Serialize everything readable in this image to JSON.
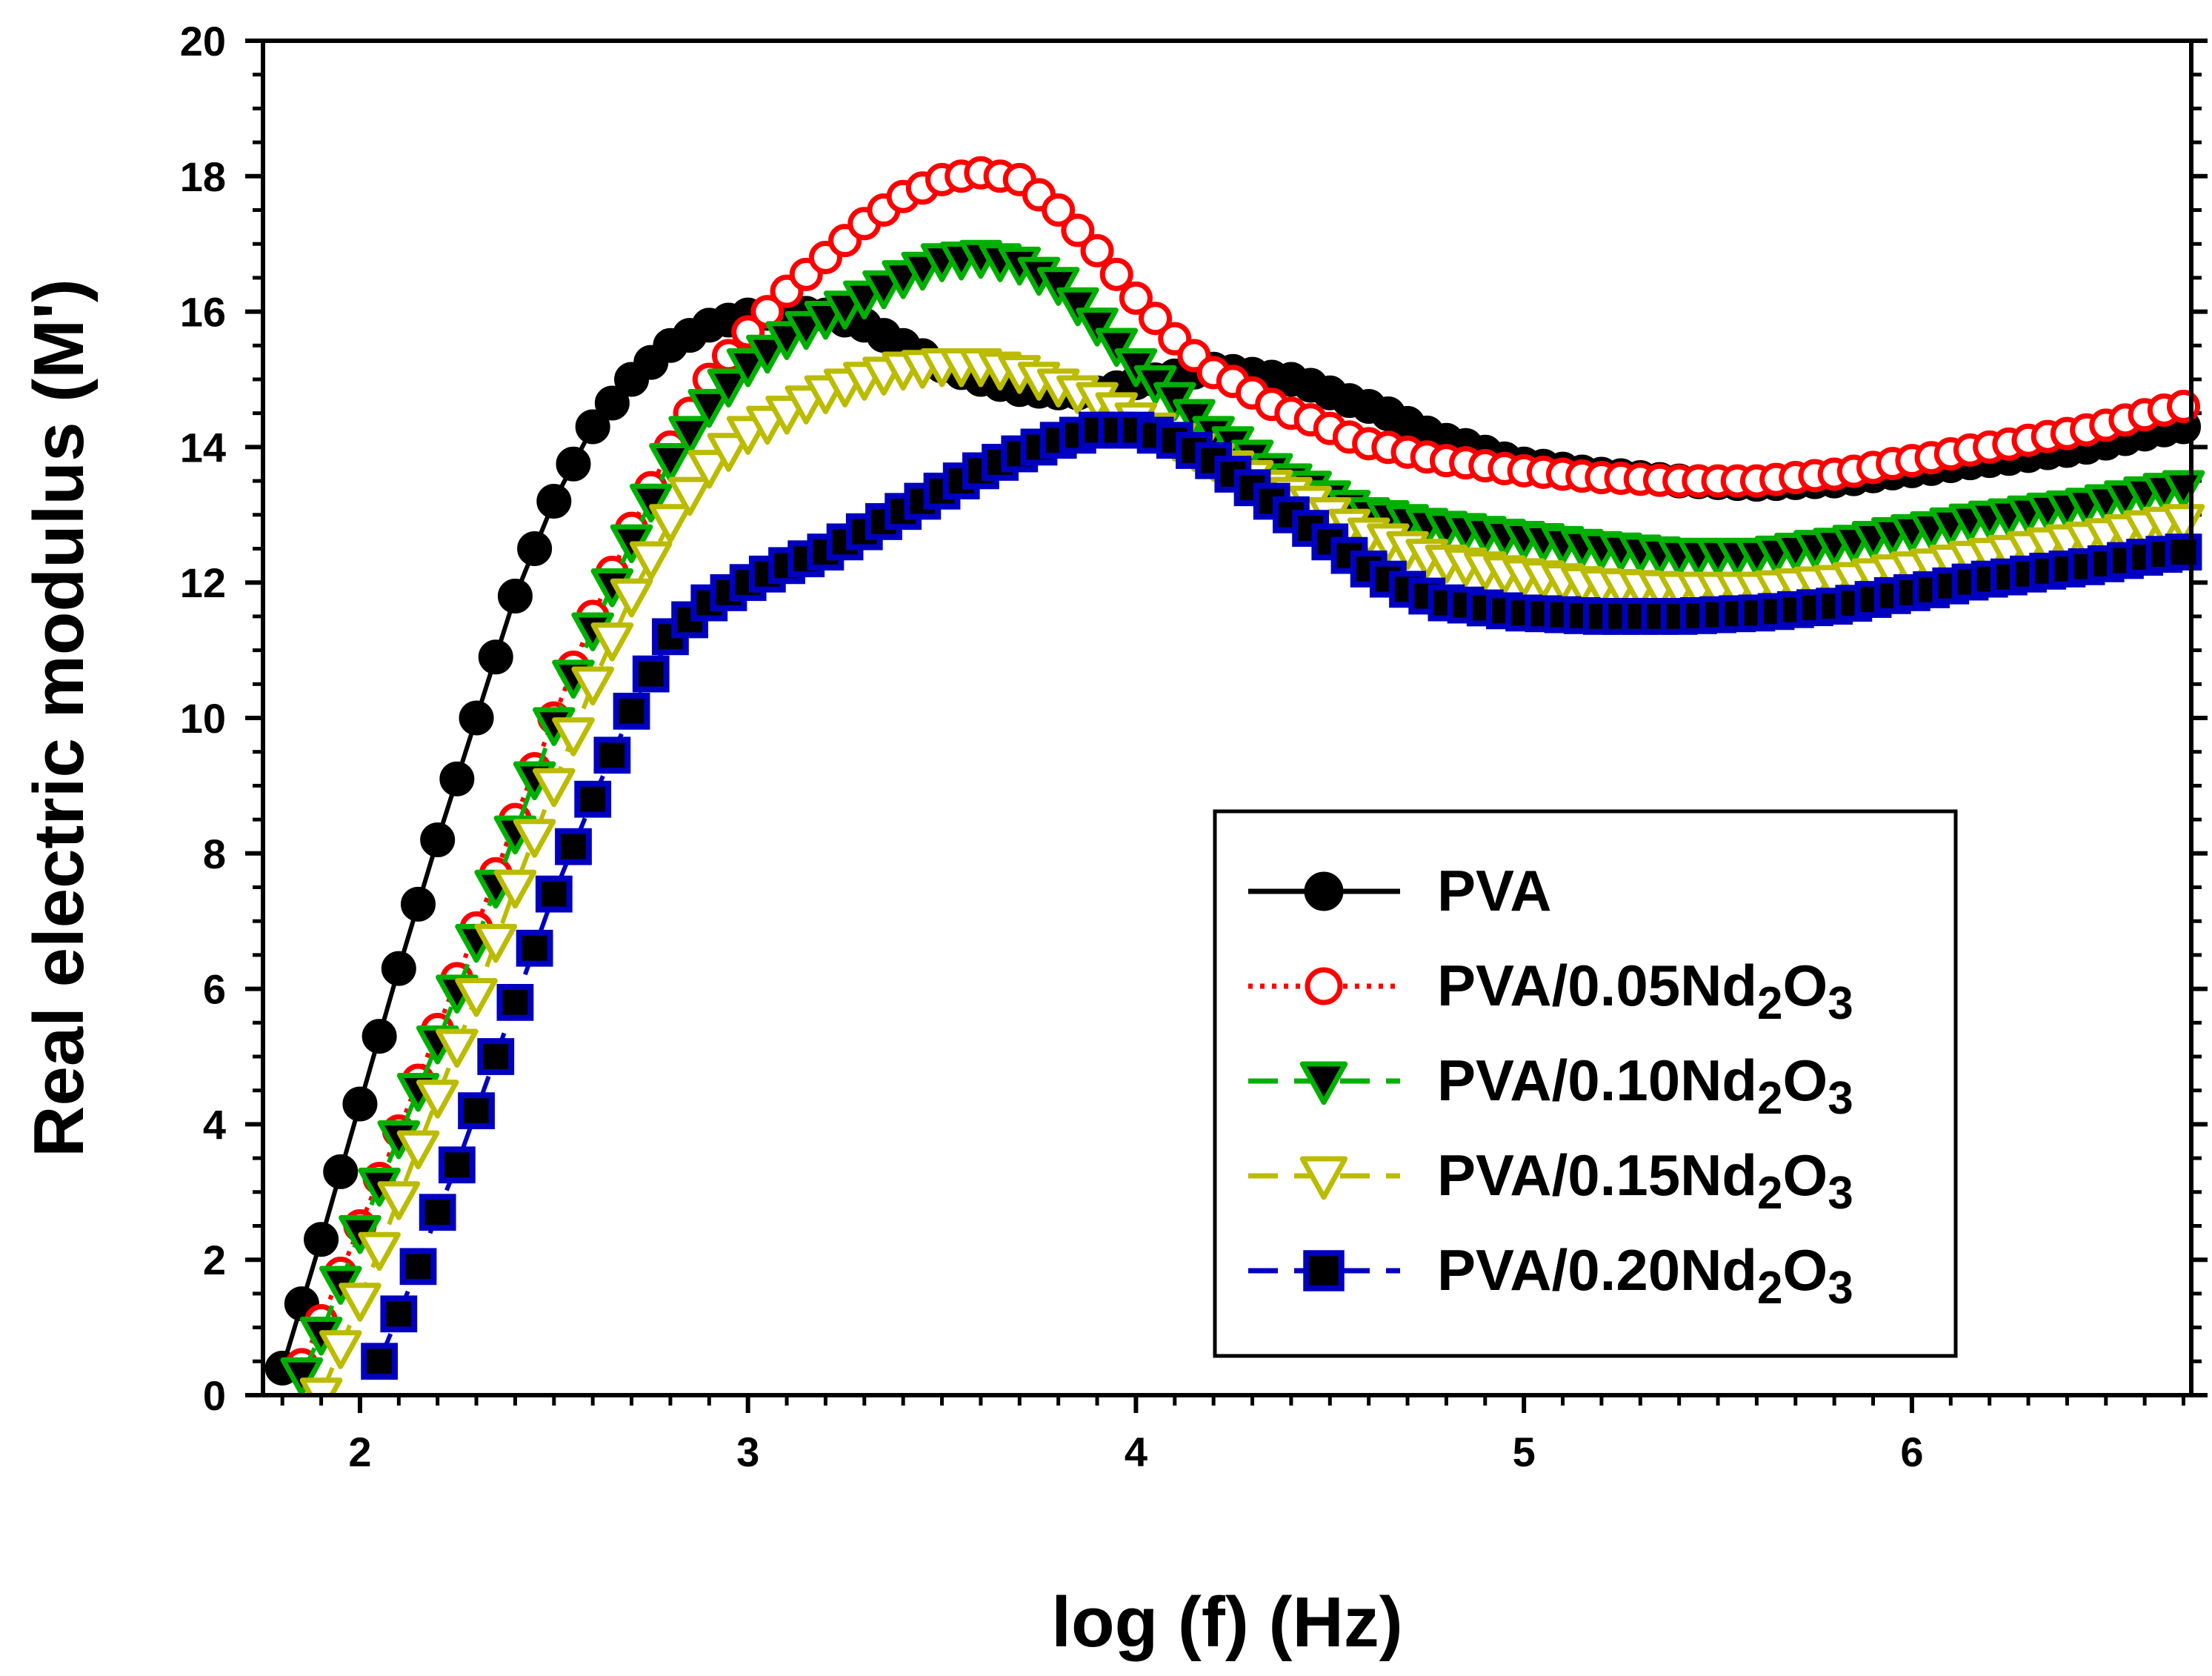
{
  "chart_data": {
    "type": "line",
    "xlabel": "log (f) (Hz)",
    "ylabel": "Real electric modulus (M')",
    "xlim": [
      1.75,
      6.72
    ],
    "ylim": [
      0,
      20
    ],
    "xticks": [
      2,
      3,
      4,
      5,
      6
    ],
    "xtick_labels": [
      "2",
      "3",
      "4",
      "5",
      "6"
    ],
    "yticks": [
      0,
      2,
      4,
      6,
      8,
      10,
      12,
      14,
      16,
      18,
      20
    ],
    "ytick_labels": [
      "0",
      "2",
      "4",
      "6",
      "8",
      "10",
      "12",
      "14",
      "16",
      "18",
      "20"
    ],
    "x_sample_start": 1.8,
    "x_sample_step": 0.05,
    "legend_position": "lower-right",
    "series": [
      {
        "name": "PVA",
        "legend_label": {
          "base": "PVA",
          "sub1": "",
          "mid": "",
          "sub2": ""
        },
        "color": "#000000",
        "marker": "circle-filled",
        "line_style": "solid",
        "knots": [
          [
            1.8,
            0.4
          ],
          [
            1.9,
            2.3
          ],
          [
            2.0,
            4.3
          ],
          [
            2.1,
            6.3
          ],
          [
            2.2,
            8.2
          ],
          [
            2.3,
            10.0
          ],
          [
            2.4,
            11.8
          ],
          [
            2.5,
            13.2
          ],
          [
            2.6,
            14.3
          ],
          [
            2.7,
            15.0
          ],
          [
            2.8,
            15.5
          ],
          [
            2.9,
            15.8
          ],
          [
            3.0,
            15.95
          ],
          [
            3.1,
            16.0
          ],
          [
            3.2,
            15.95
          ],
          [
            3.3,
            15.8
          ],
          [
            3.4,
            15.5
          ],
          [
            3.5,
            15.2
          ],
          [
            3.6,
            15.0
          ],
          [
            3.7,
            14.85
          ],
          [
            3.8,
            14.8
          ],
          [
            3.9,
            14.8
          ],
          [
            4.0,
            14.95
          ],
          [
            4.2,
            15.15
          ],
          [
            4.4,
            15.0
          ],
          [
            4.6,
            14.6
          ],
          [
            4.8,
            14.1
          ],
          [
            5.0,
            13.75
          ],
          [
            5.2,
            13.6
          ],
          [
            5.4,
            13.5
          ],
          [
            5.6,
            13.45
          ],
          [
            5.8,
            13.5
          ],
          [
            6.0,
            13.65
          ],
          [
            6.2,
            13.8
          ],
          [
            6.4,
            13.95
          ],
          [
            6.7,
            14.3
          ]
        ]
      },
      {
        "name": "PVA/0.05Nd2O3",
        "legend_label": {
          "base": "PVA/0.05Nd",
          "sub1": "2",
          "mid": "O",
          "sub2": "3"
        },
        "color": "#ff0000",
        "marker": "circle-open",
        "line_style": "dotted",
        "knots": [
          [
            1.85,
            0.45
          ],
          [
            1.9,
            1.1
          ],
          [
            2.0,
            2.5
          ],
          [
            2.1,
            3.9
          ],
          [
            2.2,
            5.4
          ],
          [
            2.3,
            6.9
          ],
          [
            2.4,
            8.5
          ],
          [
            2.5,
            10.0
          ],
          [
            2.6,
            11.5
          ],
          [
            2.7,
            12.8
          ],
          [
            2.8,
            14.0
          ],
          [
            2.9,
            15.0
          ],
          [
            3.0,
            15.7
          ],
          [
            3.1,
            16.3
          ],
          [
            3.2,
            16.8
          ],
          [
            3.3,
            17.3
          ],
          [
            3.4,
            17.7
          ],
          [
            3.5,
            17.95
          ],
          [
            3.6,
            18.05
          ],
          [
            3.7,
            17.95
          ],
          [
            3.8,
            17.5
          ],
          [
            3.9,
            16.9
          ],
          [
            4.0,
            16.2
          ],
          [
            4.1,
            15.6
          ],
          [
            4.2,
            15.1
          ],
          [
            4.4,
            14.5
          ],
          [
            4.6,
            14.05
          ],
          [
            4.8,
            13.8
          ],
          [
            5.0,
            13.65
          ],
          [
            5.2,
            13.55
          ],
          [
            5.4,
            13.5
          ],
          [
            5.6,
            13.5
          ],
          [
            5.8,
            13.6
          ],
          [
            6.0,
            13.8
          ],
          [
            6.2,
            14.0
          ],
          [
            6.4,
            14.2
          ],
          [
            6.7,
            14.6
          ]
        ]
      },
      {
        "name": "PVA/0.10Nd2O3",
        "legend_label": {
          "base": "PVA/0.10Nd",
          "sub1": "2",
          "mid": "O",
          "sub2": "3"
        },
        "color": "#00b000",
        "marker": "triangle-down-filled",
        "line_style": "dashed",
        "knots": [
          [
            1.85,
            0.3
          ],
          [
            1.9,
            0.9
          ],
          [
            2.0,
            2.4
          ],
          [
            2.1,
            3.8
          ],
          [
            2.2,
            5.2
          ],
          [
            2.3,
            6.7
          ],
          [
            2.4,
            8.3
          ],
          [
            2.5,
            9.9
          ],
          [
            2.6,
            11.3
          ],
          [
            2.7,
            12.6
          ],
          [
            2.8,
            13.8
          ],
          [
            2.9,
            14.6
          ],
          [
            3.0,
            15.2
          ],
          [
            3.1,
            15.6
          ],
          [
            3.2,
            15.9
          ],
          [
            3.3,
            16.2
          ],
          [
            3.4,
            16.5
          ],
          [
            3.5,
            16.75
          ],
          [
            3.6,
            16.8
          ],
          [
            3.7,
            16.7
          ],
          [
            3.8,
            16.4
          ],
          [
            3.9,
            15.8
          ],
          [
            4.0,
            15.2
          ],
          [
            4.1,
            14.7
          ],
          [
            4.2,
            14.2
          ],
          [
            4.4,
            13.5
          ],
          [
            4.6,
            13.0
          ],
          [
            4.8,
            12.8
          ],
          [
            5.0,
            12.65
          ],
          [
            5.2,
            12.5
          ],
          [
            5.4,
            12.4
          ],
          [
            5.6,
            12.4
          ],
          [
            5.8,
            12.55
          ],
          [
            6.0,
            12.75
          ],
          [
            6.2,
            12.95
          ],
          [
            6.4,
            13.1
          ],
          [
            6.7,
            13.4
          ]
        ]
      },
      {
        "name": "PVA/0.15Nd2O3",
        "legend_label": {
          "base": "PVA/0.15Nd",
          "sub1": "2",
          "mid": "O",
          "sub2": "3"
        },
        "color": "#bbbb00",
        "marker": "triangle-down-open",
        "line_style": "dashed",
        "knots": [
          [
            1.9,
            0.0
          ],
          [
            2.0,
            1.4
          ],
          [
            2.1,
            2.9
          ],
          [
            2.2,
            4.4
          ],
          [
            2.3,
            5.9
          ],
          [
            2.4,
            7.5
          ],
          [
            2.5,
            9.0
          ],
          [
            2.6,
            10.5
          ],
          [
            2.7,
            11.8
          ],
          [
            2.8,
            12.9
          ],
          [
            2.9,
            13.7
          ],
          [
            3.0,
            14.2
          ],
          [
            3.1,
            14.5
          ],
          [
            3.2,
            14.8
          ],
          [
            3.3,
            15.0
          ],
          [
            3.4,
            15.15
          ],
          [
            3.5,
            15.2
          ],
          [
            3.6,
            15.2
          ],
          [
            3.7,
            15.1
          ],
          [
            3.8,
            14.9
          ],
          [
            3.9,
            14.7
          ],
          [
            4.0,
            14.4
          ],
          [
            4.1,
            14.1
          ],
          [
            4.2,
            13.8
          ],
          [
            4.4,
            13.3
          ],
          [
            4.6,
            12.7
          ],
          [
            4.8,
            12.3
          ],
          [
            5.0,
            12.1
          ],
          [
            5.2,
            11.95
          ],
          [
            5.4,
            11.9
          ],
          [
            5.6,
            11.9
          ],
          [
            5.8,
            12.0
          ],
          [
            6.0,
            12.2
          ],
          [
            6.2,
            12.4
          ],
          [
            6.4,
            12.6
          ],
          [
            6.7,
            12.9
          ]
        ]
      },
      {
        "name": "PVA/0.20Nd2O3",
        "legend_label": {
          "base": "PVA/0.20Nd",
          "sub1": "2",
          "mid": "O",
          "sub2": "3"
        },
        "color": "#0000c0",
        "marker": "square-filled",
        "line_style": "dashed",
        "knots": [
          [
            2.05,
            0.5
          ],
          [
            2.1,
            1.2
          ],
          [
            2.15,
            1.9
          ],
          [
            2.2,
            2.7
          ],
          [
            2.25,
            3.4
          ],
          [
            2.3,
            4.2
          ],
          [
            2.35,
            5.0
          ],
          [
            2.4,
            5.8
          ],
          [
            2.45,
            6.6
          ],
          [
            2.5,
            7.4
          ],
          [
            2.55,
            8.1
          ],
          [
            2.6,
            8.8
          ],
          [
            2.7,
            10.1
          ],
          [
            2.8,
            11.2
          ],
          [
            2.9,
            11.7
          ],
          [
            3.0,
            12.0
          ],
          [
            3.1,
            12.25
          ],
          [
            3.2,
            12.45
          ],
          [
            3.3,
            12.75
          ],
          [
            3.4,
            13.05
          ],
          [
            3.5,
            13.35
          ],
          [
            3.6,
            13.65
          ],
          [
            3.7,
            13.9
          ],
          [
            3.8,
            14.1
          ],
          [
            3.9,
            14.25
          ],
          [
            4.0,
            14.25
          ],
          [
            4.1,
            14.1
          ],
          [
            4.2,
            13.8
          ],
          [
            4.3,
            13.4
          ],
          [
            4.4,
            13.0
          ],
          [
            4.5,
            12.6
          ],
          [
            4.6,
            12.2
          ],
          [
            4.7,
            11.9
          ],
          [
            4.8,
            11.7
          ],
          [
            5.0,
            11.55
          ],
          [
            5.2,
            11.5
          ],
          [
            5.4,
            11.5
          ],
          [
            5.6,
            11.55
          ],
          [
            5.8,
            11.65
          ],
          [
            6.0,
            11.85
          ],
          [
            6.2,
            12.05
          ],
          [
            6.4,
            12.2
          ],
          [
            6.7,
            12.45
          ]
        ]
      }
    ]
  }
}
